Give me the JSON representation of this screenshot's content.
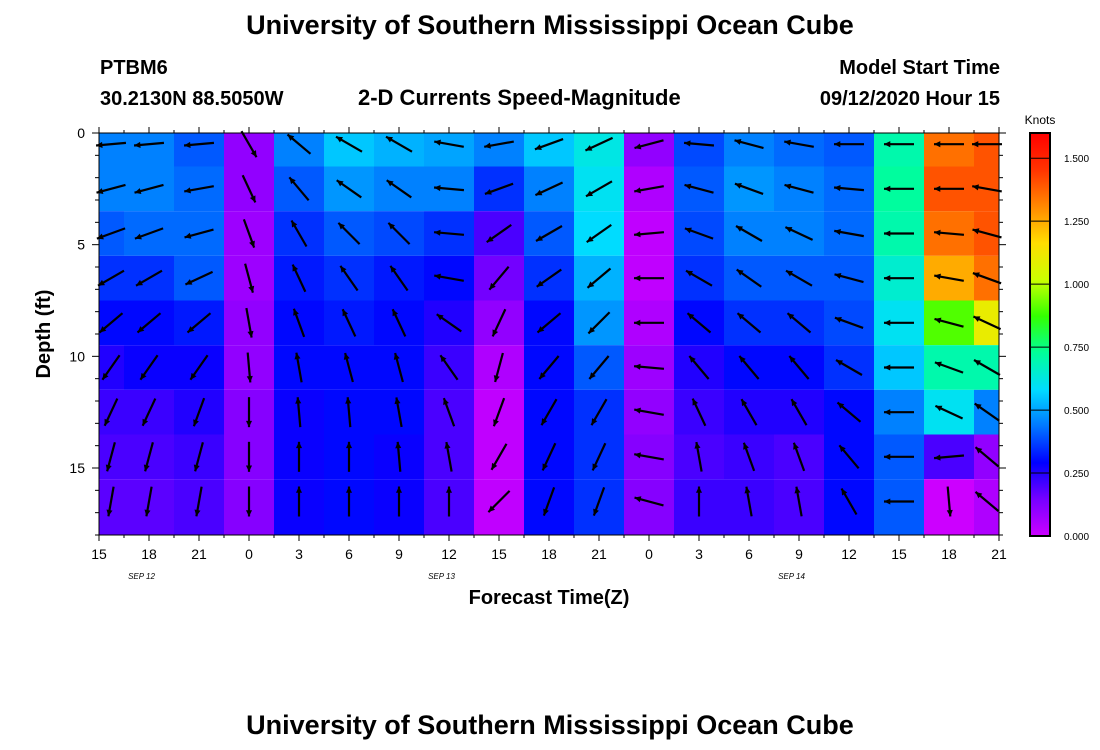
{
  "header": {
    "title_top": "University of Southern Mississippi Ocean Cube",
    "title_bottom": "University of Southern Mississippi Ocean Cube",
    "station_id": "PTBM6",
    "station_coords": "30.2130N 88.5050W",
    "plot_title": "2-D Currents Speed-Magnitude",
    "model_start_label": "Model Start Time",
    "model_start_value": "09/12/2020 Hour 15"
  },
  "chart_data": {
    "type": "heatmap",
    "title": "2-D Currents Speed-Magnitude",
    "xlabel": "Forecast Time(Z)",
    "ylabel": "Depth (ft)",
    "x_tick_labels": [
      "15",
      "18",
      "21",
      "0",
      "3",
      "6",
      "9",
      "12",
      "15",
      "18",
      "21",
      "0",
      "3",
      "6",
      "9",
      "12",
      "15",
      "18",
      "21"
    ],
    "date_labels": [
      {
        "label": "SEP 12",
        "after_tick": 1
      },
      {
        "label": "SEP 13",
        "after_tick": 7
      },
      {
        "label": "SEP 14",
        "after_tick": 14
      }
    ],
    "y_ticks": [
      0,
      5,
      10,
      15
    ],
    "ylim": [
      0,
      18
    ],
    "colorbar": {
      "title": "Knots",
      "ticks": [
        "0.000",
        "0.250",
        "0.500",
        "0.750",
        "1.000",
        "1.250",
        "1.500"
      ],
      "range": [
        0,
        1.6
      ],
      "colors": [
        "#cc00ff",
        "#7700ff",
        "#0000ff",
        "#0077ff",
        "#00ddff",
        "#00ff99",
        "#33ff00",
        "#ccff00",
        "#ffdd00",
        "#ff8800",
        "#ff3300",
        "#ff0000"
      ]
    },
    "depths_ft": [
      0.5,
      2.5,
      4.5,
      6.5,
      8.5,
      10.5,
      12.5,
      14.5,
      16.5
    ],
    "speed_knots_by_time": [
      [
        0.45,
        0.45,
        0.4,
        0.35,
        0.3,
        0.25,
        0.22,
        0.2,
        0.18
      ],
      [
        0.45,
        0.45,
        0.42,
        0.35,
        0.3,
        0.28,
        0.22,
        0.2,
        0.18
      ],
      [
        0.4,
        0.42,
        0.42,
        0.4,
        0.32,
        0.28,
        0.25,
        0.22,
        0.2
      ],
      [
        0.1,
        0.1,
        0.08,
        0.08,
        0.1,
        0.1,
        0.12,
        0.12,
        0.12
      ],
      [
        0.45,
        0.4,
        0.35,
        0.32,
        0.3,
        0.3,
        0.28,
        0.28,
        0.28
      ],
      [
        0.55,
        0.48,
        0.4,
        0.35,
        0.32,
        0.3,
        0.3,
        0.3,
        0.3
      ],
      [
        0.52,
        0.45,
        0.38,
        0.32,
        0.3,
        0.3,
        0.3,
        0.28,
        0.28
      ],
      [
        0.5,
        0.45,
        0.35,
        0.3,
        0.25,
        0.22,
        0.2,
        0.2,
        0.2
      ],
      [
        0.45,
        0.35,
        0.2,
        0.15,
        0.1,
        0.05,
        0.02,
        0.02,
        0.02
      ],
      [
        0.55,
        0.45,
        0.4,
        0.35,
        0.3,
        0.3,
        0.3,
        0.3,
        0.3
      ],
      [
        0.62,
        0.6,
        0.58,
        0.52,
        0.48,
        0.4,
        0.35,
        0.35,
        0.35
      ],
      [
        0.1,
        0.05,
        0.02,
        0.02,
        0.05,
        0.08,
        0.1,
        0.12,
        0.12
      ],
      [
        0.38,
        0.4,
        0.38,
        0.35,
        0.3,
        0.25,
        0.22,
        0.2,
        0.22
      ],
      [
        0.45,
        0.48,
        0.45,
        0.4,
        0.35,
        0.3,
        0.25,
        0.22,
        0.22
      ],
      [
        0.42,
        0.45,
        0.45,
        0.4,
        0.35,
        0.3,
        0.25,
        0.2,
        0.2
      ],
      [
        0.4,
        0.42,
        0.42,
        0.4,
        0.38,
        0.35,
        0.3,
        0.3,
        0.3
      ],
      [
        0.7,
        0.72,
        0.7,
        0.65,
        0.6,
        0.55,
        0.45,
        0.4,
        0.4
      ],
      [
        1.35,
        1.4,
        1.35,
        1.25,
        0.9,
        0.7,
        0.6,
        0.2,
        0.0
      ],
      [
        1.4,
        1.4,
        1.4,
        1.35,
        1.1,
        0.7,
        0.45,
        0.1,
        0.05
      ]
    ],
    "vector_angle_deg_by_time": [
      [
        185,
        195,
        200,
        210,
        220,
        235,
        245,
        255,
        260
      ],
      [
        185,
        195,
        200,
        210,
        220,
        235,
        245,
        255,
        260
      ],
      [
        185,
        190,
        195,
        205,
        220,
        235,
        250,
        255,
        260
      ],
      [
        300,
        295,
        290,
        285,
        280,
        275,
        270,
        270,
        270
      ],
      [
        140,
        130,
        120,
        115,
        110,
        100,
        95,
        90,
        90
      ],
      [
        150,
        145,
        135,
        125,
        115,
        105,
        95,
        90,
        90
      ],
      [
        150,
        145,
        135,
        125,
        115,
        105,
        100,
        95,
        90
      ],
      [
        170,
        175,
        175,
        170,
        145,
        125,
        110,
        100,
        90
      ],
      [
        190,
        200,
        215,
        230,
        245,
        255,
        250,
        240,
        225
      ],
      [
        200,
        205,
        210,
        215,
        220,
        230,
        240,
        245,
        250
      ],
      [
        205,
        210,
        215,
        220,
        225,
        230,
        240,
        245,
        250
      ],
      [
        195,
        190,
        185,
        180,
        180,
        175,
        170,
        170,
        165
      ],
      [
        175,
        165,
        160,
        150,
        140,
        130,
        115,
        100,
        90
      ],
      [
        165,
        160,
        150,
        145,
        140,
        130,
        120,
        110,
        100
      ],
      [
        170,
        165,
        155,
        150,
        140,
        130,
        120,
        110,
        100
      ],
      [
        180,
        175,
        170,
        165,
        160,
        150,
        140,
        130,
        120
      ],
      [
        180,
        180,
        180,
        180,
        180,
        180,
        180,
        180,
        180
      ],
      [
        180,
        180,
        175,
        170,
        165,
        160,
        155,
        185,
        275
      ],
      [
        180,
        170,
        165,
        160,
        155,
        150,
        145,
        140,
        140
      ]
    ]
  }
}
